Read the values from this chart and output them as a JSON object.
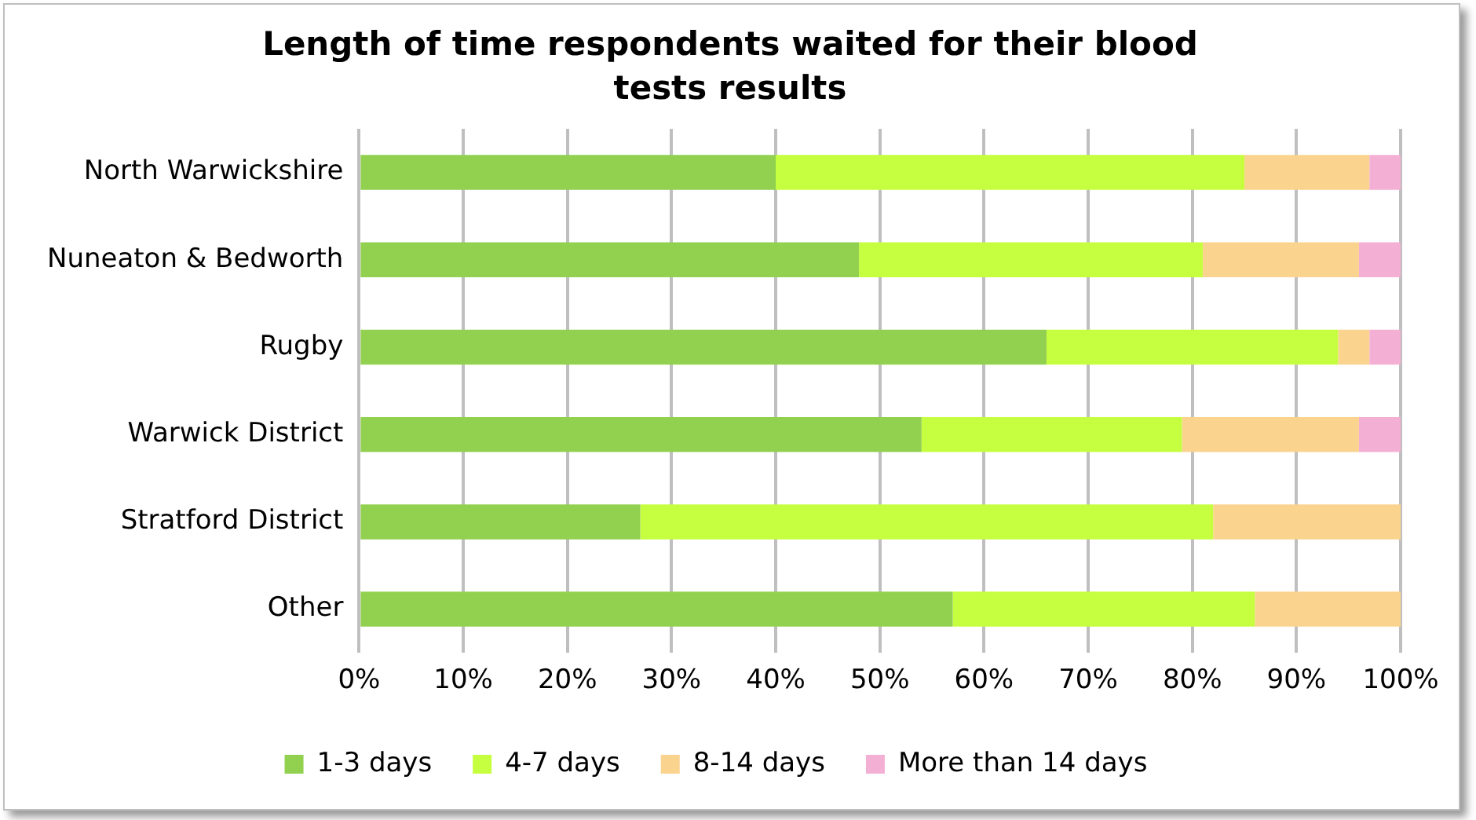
{
  "chart_data": {
    "type": "bar",
    "orientation": "horizontal",
    "stacked": true,
    "title": "Length of time respondents waited for their blood tests results",
    "categories": [
      "North Warwickshire",
      "Nuneaton & Bedworth",
      "Rugby",
      "Warwick District",
      "Stratford District",
      "Other"
    ],
    "series": [
      {
        "name": "1-3 days",
        "color": "#92d050",
        "values": [
          40,
          48,
          66,
          54,
          27,
          57
        ]
      },
      {
        "name": "4-7 days",
        "color": "#c6ff3f",
        "values": [
          45,
          33,
          28,
          25,
          55,
          29
        ]
      },
      {
        "name": "8-14 days",
        "color": "#fad38e",
        "values": [
          12,
          15,
          3,
          17,
          18,
          14
        ]
      },
      {
        "name": "More than 14 days",
        "color": "#f4b0d4",
        "values": [
          3,
          4,
          3,
          4,
          null,
          null
        ]
      }
    ],
    "xlim": [
      0,
      100
    ],
    "xticks": [
      {
        "value": 0,
        "label": "0%"
      },
      {
        "value": 10,
        "label": "10%"
      },
      {
        "value": 20,
        "label": "20%"
      },
      {
        "value": 30,
        "label": "30%"
      },
      {
        "value": 40,
        "label": "40%"
      },
      {
        "value": 50,
        "label": "50%"
      },
      {
        "value": 60,
        "label": "60%"
      },
      {
        "value": 70,
        "label": "70%"
      },
      {
        "value": 80,
        "label": "80%"
      },
      {
        "value": 90,
        "label": "90%"
      },
      {
        "value": 100,
        "label": "100%"
      }
    ],
    "grid": "x",
    "legend": "bottom"
  }
}
